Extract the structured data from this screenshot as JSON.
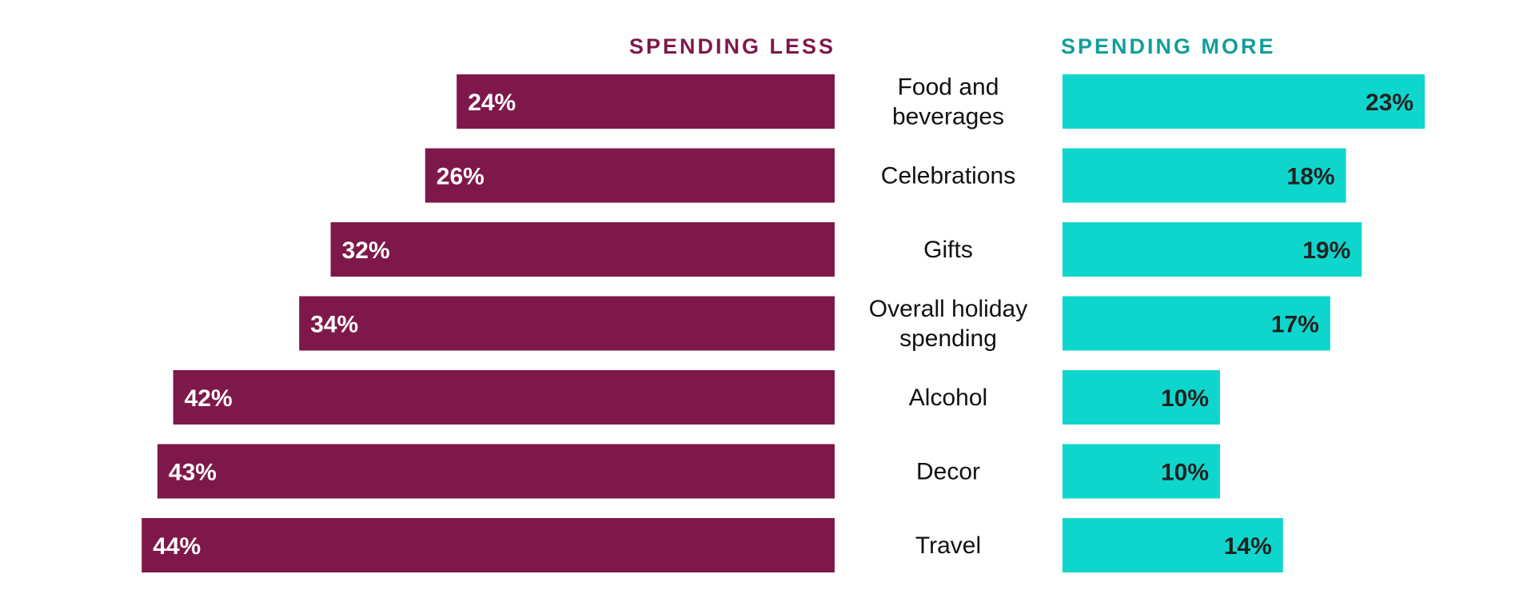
{
  "chart_data": {
    "type": "bar",
    "layout": "diverging-horizontal",
    "categories": [
      [
        "Food and",
        "beverages"
      ],
      [
        "Celebrations"
      ],
      [
        "Gifts"
      ],
      [
        "Overall holiday",
        "spending"
      ],
      [
        "Alcohol"
      ],
      [
        "Decor"
      ],
      [
        "Travel"
      ]
    ],
    "series": [
      {
        "name": "SPENDING LESS",
        "color": "#7f184a",
        "label_color": "#ffffff",
        "values": [
          24,
          26,
          32,
          34,
          42,
          43,
          44
        ],
        "value_labels": [
          "24%",
          "26%",
          "32%",
          "34%",
          "42%",
          "43%",
          "44%"
        ]
      },
      {
        "name": "SPENDING MORE",
        "color": "#0fd6cc",
        "header_color": "#129e98",
        "label_color": "#222222",
        "values": [
          23,
          18,
          19,
          17,
          10,
          10,
          14
        ],
        "value_labels": [
          "23%",
          "18%",
          "19%",
          "17%",
          "10%",
          "10%",
          "14%"
        ]
      }
    ],
    "unit": "%",
    "xlim": [
      0,
      44
    ],
    "grid": false
  }
}
